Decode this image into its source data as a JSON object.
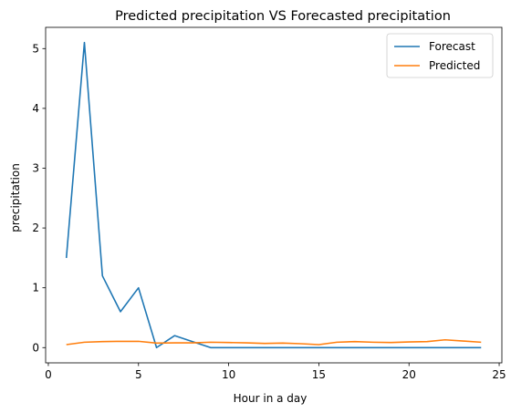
{
  "chart_data": {
    "type": "line",
    "title": "Predicted precipitation VS Forecasted precipitation",
    "xlabel": "Hour in a day",
    "ylabel": "precipitation",
    "xlim": [
      -0.15,
      25.15
    ],
    "ylim": [
      -0.255,
      5.355
    ],
    "xticks": [
      0,
      5,
      10,
      15,
      20,
      25
    ],
    "yticks": [
      0,
      1,
      2,
      3,
      4,
      5
    ],
    "grid": false,
    "legend_position": "top-right",
    "x": [
      1,
      2,
      3,
      4,
      5,
      6,
      7,
      8,
      9,
      10,
      11,
      12,
      13,
      14,
      15,
      16,
      17,
      18,
      19,
      20,
      21,
      22,
      23,
      24
    ],
    "series": [
      {
        "name": "Forecast",
        "color": "#1f77b4",
        "values": [
          1.5,
          5.1,
          1.2,
          0.6,
          1.0,
          0.0,
          0.2,
          0.1,
          0.0,
          0.0,
          0.0,
          0.0,
          0.0,
          0.0,
          0.0,
          0.0,
          0.0,
          0.0,
          0.0,
          0.0,
          0.0,
          0.0,
          0.0,
          0.0
        ]
      },
      {
        "name": "Predicted",
        "color": "#ff7f0e",
        "values": [
          0.05,
          0.09,
          0.1,
          0.105,
          0.105,
          0.075,
          0.08,
          0.08,
          0.09,
          0.085,
          0.08,
          0.07,
          0.075,
          0.065,
          0.05,
          0.09,
          0.1,
          0.09,
          0.085,
          0.095,
          0.1,
          0.13,
          0.11,
          0.09
        ]
      }
    ]
  }
}
